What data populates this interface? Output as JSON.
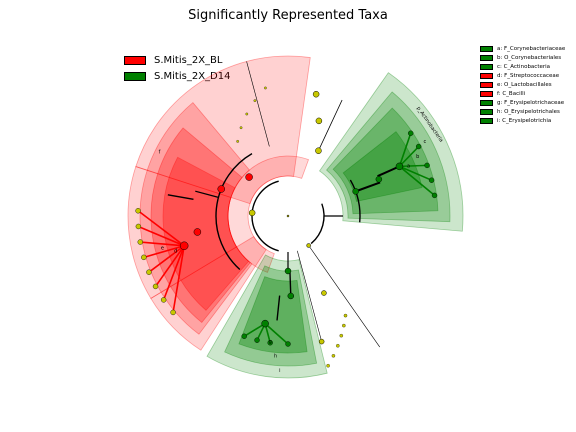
{
  "chart_data": {
    "type": "cladogram",
    "title": "Significantly Represented Taxa",
    "groups": [
      {
        "name": "S.Mitis_2X_BL",
        "color": "#ff0000"
      },
      {
        "name": "S.Mitis_2X_D14",
        "color": "#008000"
      }
    ],
    "taxa": [
      {
        "key": "a",
        "label": "a: F_Corynebacteriaceae",
        "group": "S.Mitis_2X_D14",
        "color": "#008000"
      },
      {
        "key": "b",
        "label": "b: O_Corynebacteriales",
        "group": "S.Mitis_2X_D14",
        "color": "#008000"
      },
      {
        "key": "c",
        "label": "c: C_Actinobacteria",
        "group": "S.Mitis_2X_D14",
        "color": "#008000"
      },
      {
        "key": "d",
        "label": "d: F_Streptococcaceae",
        "group": "S.Mitis_2X_BL",
        "color": "#ff0000"
      },
      {
        "key": "e",
        "label": "e: O_Lactobacillales",
        "group": "S.Mitis_2X_BL",
        "color": "#ff0000"
      },
      {
        "key": "f",
        "label": "f: C_Bacilli",
        "group": "S.Mitis_2X_BL",
        "color": "#ff0000"
      },
      {
        "key": "g",
        "label": "g: F_Erysipelotrichaceae",
        "group": "S.Mitis_2X_D14",
        "color": "#008000"
      },
      {
        "key": "h",
        "label": "h: O_Erysipelotrichales",
        "group": "S.Mitis_2X_D14",
        "color": "#008000"
      },
      {
        "key": "i",
        "label": "i: C_Erysipelotrichia",
        "group": "S.Mitis_2X_D14",
        "color": "#008000"
      }
    ],
    "phylum_labels": [
      "p_Actinobacteria"
    ],
    "background_clades": [
      {
        "group": "S.Mitis_2X_BL",
        "span_deg": [
          -22,
          200
        ],
        "levels": [
          "phylum",
          "class",
          "order",
          "family"
        ]
      },
      {
        "group": "S.Mitis_2X_D14",
        "span_deg": [
          -95,
          -16
        ],
        "levels": [
          "phylum",
          "class",
          "order",
          "family"
        ]
      },
      {
        "group": "S.Mitis_2X_D14",
        "span_deg": [
          103,
          152
        ],
        "levels": [
          "class",
          "order",
          "family"
        ]
      }
    ],
    "nonsignificant_color": "#c8c800"
  }
}
